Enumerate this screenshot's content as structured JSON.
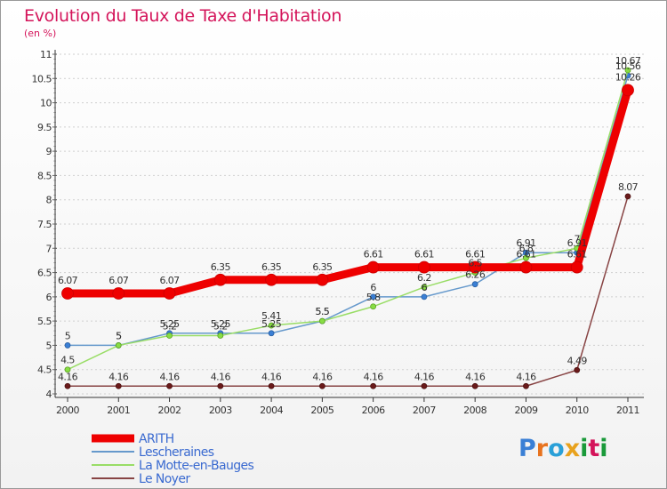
{
  "header": {
    "title": "Evolution du Taux de Taxe d'Habitation",
    "subtitle": "(en %)"
  },
  "brand": {
    "name": "Proxiti",
    "colors": [
      "#3a7fd5",
      "#e8731e",
      "#2aa0d8",
      "#e8a21e",
      "#1a9a3a",
      "#d4145a",
      "#1a9a3a"
    ]
  },
  "chart_data": {
    "type": "line",
    "title": "Evolution du Taux de Taxe d'Habitation",
    "subtitle": "(en %)",
    "xlabel": "",
    "ylabel": "",
    "x": [
      "2000",
      "2001",
      "2002",
      "2003",
      "2004",
      "2005",
      "2006",
      "2007",
      "2008",
      "2009",
      "2010",
      "2011"
    ],
    "ylim": [
      4,
      11
    ],
    "yticks": [
      "4",
      "4.5",
      "5",
      "5.5",
      "6",
      "6.5",
      "7",
      "7.5",
      "8",
      "8.5",
      "9",
      "9.5",
      "10",
      "10.5",
      "11"
    ],
    "grid": "horizontal dashed",
    "legend_position": "bottom-left",
    "series": [
      {
        "name": "ARITH",
        "color": "#ee0000",
        "values": [
          6.07,
          6.07,
          6.07,
          6.35,
          6.35,
          6.35,
          6.61,
          6.61,
          6.61,
          6.61,
          6.61,
          10.26
        ],
        "labels": [
          "6.07",
          "6.07",
          "6.07",
          "6.35",
          "6.35",
          "6.35",
          "6.61",
          "6.61",
          "6.61",
          "6.61",
          "6.61",
          "10.26"
        ]
      },
      {
        "name": "Lescheraines",
        "color": "#6699cc",
        "values": [
          5,
          5,
          5.25,
          5.25,
          5.25,
          5.5,
          6,
          6,
          6.26,
          6.91,
          6.91,
          10.56
        ],
        "labels": [
          "5",
          "5",
          "5.25",
          "5.25",
          "5.25",
          "5.5",
          "6",
          "6",
          "6.26",
          "6.91",
          "6.91",
          "10.56"
        ]
      },
      {
        "name": "La Motte-en-Bauges",
        "color": "#99dd66",
        "values": [
          4.5,
          5,
          5.2,
          5.2,
          5.41,
          5.5,
          5.8,
          6.2,
          6.5,
          6.8,
          7,
          10.67
        ],
        "labels": [
          "4.5",
          "5",
          "5.2",
          "5.2",
          "5.41",
          "5.5",
          "5.8",
          "6.2",
          "6.5",
          "6.8",
          "7",
          "10.67"
        ]
      },
      {
        "name": "Le Noyer",
        "color": "#884444",
        "values": [
          4.16,
          4.16,
          4.16,
          4.16,
          4.16,
          4.16,
          4.16,
          4.16,
          4.16,
          4.16,
          4.49,
          8.07
        ],
        "labels": [
          "4.16",
          "4.16",
          "4.16",
          "4.16",
          "4.16",
          "4.16",
          "4.16",
          "4.16",
          "4.16",
          "4.16",
          "4.49",
          "8.07"
        ]
      }
    ]
  }
}
